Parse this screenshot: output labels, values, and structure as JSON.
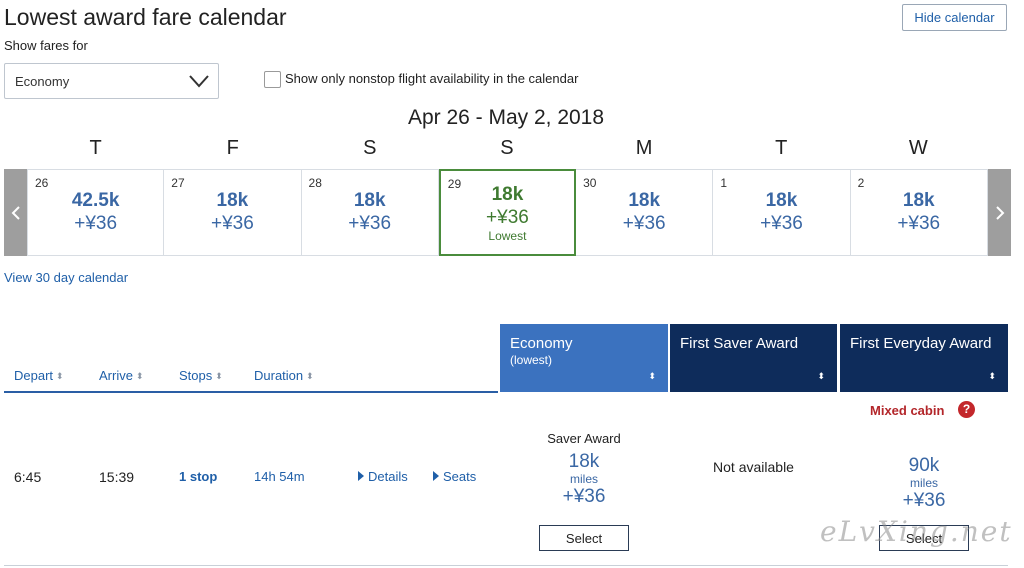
{
  "title": "Lowest award fare calendar",
  "hide_calendar_label": "Hide calendar",
  "show_fares_for_label": "Show fares for",
  "cabin_select": {
    "value": "Economy"
  },
  "nonstop": {
    "label": "Show only nonstop flight availability in the calendar",
    "checked": false
  },
  "date_range": "Apr 26 - May 2, 2018",
  "weekdays": [
    "T",
    "F",
    "S",
    "S",
    "M",
    "T",
    "W"
  ],
  "days": [
    {
      "date": "26",
      "miles": "42.5k",
      "tax": "+¥36",
      "lowest": false
    },
    {
      "date": "27",
      "miles": "18k",
      "tax": "+¥36",
      "lowest": false
    },
    {
      "date": "28",
      "miles": "18k",
      "tax": "+¥36",
      "lowest": false
    },
    {
      "date": "29",
      "miles": "18k",
      "tax": "+¥36",
      "lowest": true,
      "lowest_label": "Lowest"
    },
    {
      "date": "30",
      "miles": "18k",
      "tax": "+¥36",
      "lowest": false
    },
    {
      "date": "1",
      "miles": "18k",
      "tax": "+¥36",
      "lowest": false
    },
    {
      "date": "2",
      "miles": "18k",
      "tax": "+¥36",
      "lowest": false
    }
  ],
  "view_30_day": "View 30 day calendar",
  "sort_columns": {
    "depart": "Depart",
    "arrive": "Arrive",
    "stops": "Stops",
    "duration": "Duration"
  },
  "fare_columns": {
    "economy": {
      "title": "Economy",
      "subtitle": "(lowest)"
    },
    "first_saver": {
      "title": "First Saver Award"
    },
    "first_everyday": {
      "title": "First Everyday Award"
    }
  },
  "mixed_cabin": "Mixed cabin",
  "help_glyph": "?",
  "sort_glyph": "⬍",
  "flight": {
    "depart": "6:45",
    "arrive": "15:39",
    "stops": "1 stop",
    "duration": "14h 54m",
    "details": "Details",
    "seats": "Seats",
    "economy": {
      "label": "Saver Award",
      "miles": "18k",
      "unit": "miles",
      "tax": "+¥36",
      "select": "Select"
    },
    "first_saver": {
      "status": "Not available"
    },
    "first_everyday": {
      "miles": "90k",
      "unit": "miles",
      "tax": "+¥36",
      "select": "Select"
    }
  },
  "watermark": "eLvXing.net",
  "colors": {
    "link": "#1f5fa8",
    "economy_header": "#3b72bf",
    "first_header": "#0e2c5b",
    "lowest_green": "#4a8c3c",
    "mixed_red": "#b3262a"
  }
}
